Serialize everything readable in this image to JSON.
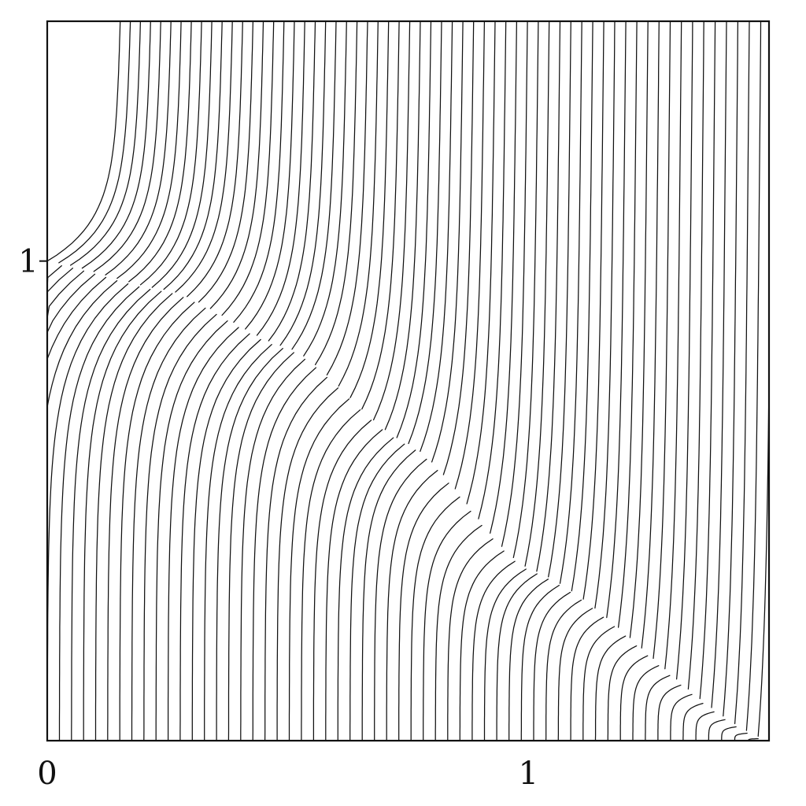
{
  "chart_data": {
    "type": "line",
    "title": "",
    "xlabel": "",
    "ylabel": "",
    "xlim": [
      0,
      1.5
    ],
    "ylim": [
      0,
      1.5
    ],
    "x_ticks": [
      {
        "value": 0,
        "label": "0"
      },
      {
        "value": 1,
        "label": "1"
      }
    ],
    "y_ticks": [
      {
        "value": 1,
        "label": "1"
      }
    ],
    "grid": false,
    "legend": "none",
    "line_color": "#111111",
    "separatrix": {
      "description_points": [
        [
          0,
          1.0
        ],
        [
          0.25,
          0.94
        ],
        [
          0.5,
          0.82
        ],
        [
          0.75,
          0.62
        ],
        [
          1.0,
          0.36
        ],
        [
          1.5,
          0.0
        ]
      ]
    },
    "upper_family": {
      "count": 62,
      "start_x_range": [
        0.0,
        1.5
      ],
      "end_y": 1.5
    },
    "lower_family": {
      "count": 64,
      "start_x_range": [
        0.0,
        1.5
      ],
      "end_y": 0.0
    }
  }
}
